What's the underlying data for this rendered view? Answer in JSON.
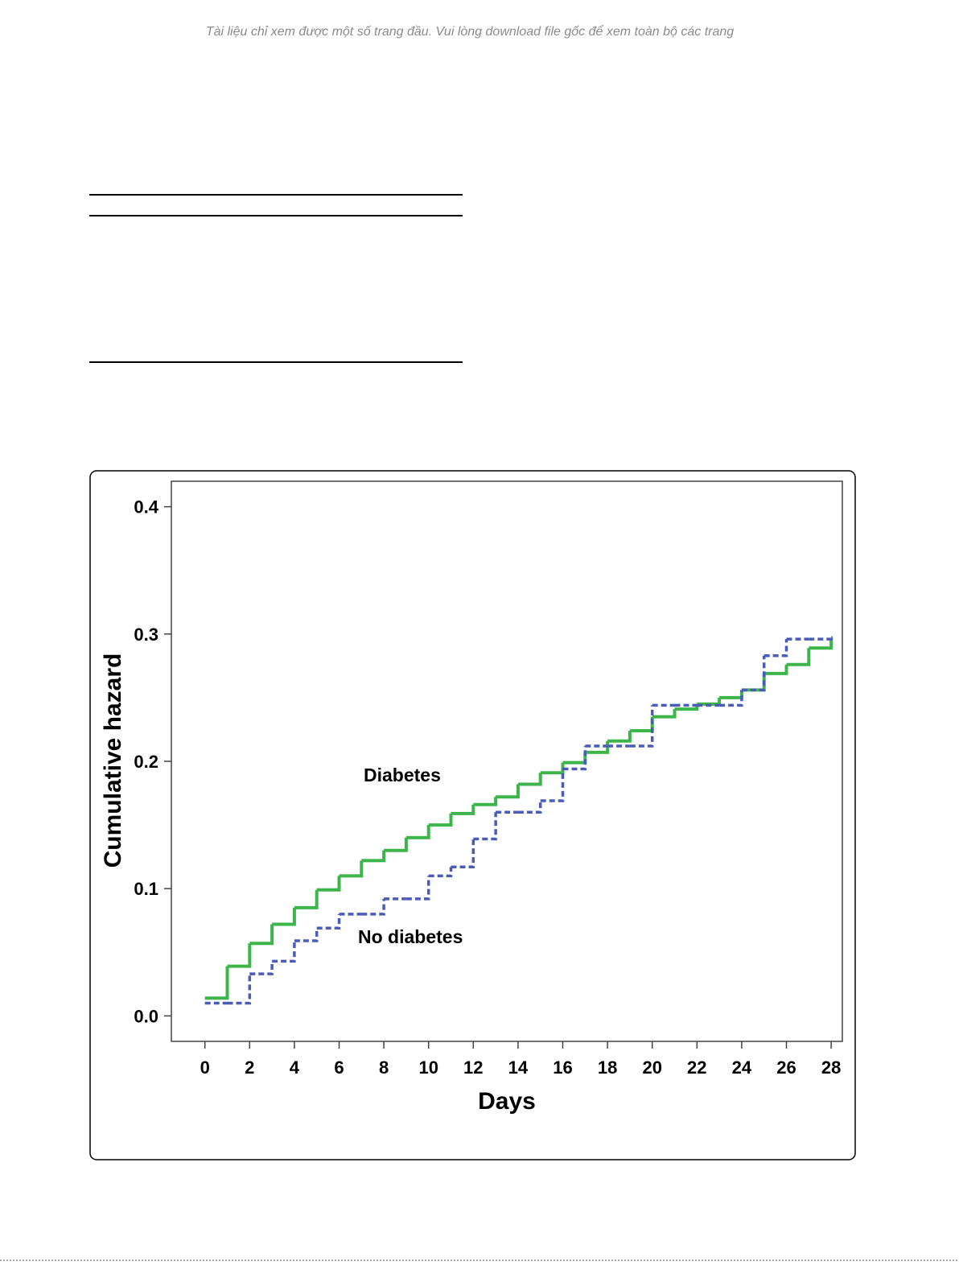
{
  "header": {
    "notice": "Tài liệu chỉ xem được một số trang đầu. Vui lòng download file gốc để xem toàn bộ các trang"
  },
  "chart_data": {
    "type": "step",
    "xlabel": "Days",
    "ylabel": "Cumulative hazard",
    "x": [
      0,
      1,
      2,
      3,
      4,
      5,
      6,
      7,
      8,
      9,
      10,
      11,
      12,
      13,
      14,
      15,
      16,
      17,
      18,
      19,
      20,
      21,
      22,
      23,
      24,
      25,
      26,
      27,
      28
    ],
    "series": [
      {
        "name": "Diabetes",
        "color": "#3db54a",
        "style": "solid",
        "values": [
          0.014,
          0.039,
          0.057,
          0.072,
          0.085,
          0.099,
          0.11,
          0.122,
          0.13,
          0.14,
          0.15,
          0.159,
          0.166,
          0.172,
          0.182,
          0.191,
          0.199,
          0.207,
          0.216,
          0.224,
          0.235,
          0.241,
          0.245,
          0.25,
          0.256,
          0.269,
          0.276,
          0.289,
          0.297
        ]
      },
      {
        "name": "No diabetes",
        "color": "#4a5cb8",
        "style": "dashed",
        "values": [
          0.01,
          0.01,
          0.033,
          0.043,
          0.059,
          0.069,
          0.08,
          0.08,
          0.092,
          0.092,
          0.11,
          0.117,
          0.139,
          0.16,
          0.16,
          0.169,
          0.194,
          0.212,
          0.212,
          0.212,
          0.244,
          0.244,
          0.244,
          0.244,
          0.256,
          0.283,
          0.296,
          0.296,
          0.296
        ]
      }
    ],
    "xlim": [
      -1.5,
      28.5
    ],
    "ylim": [
      -0.02,
      0.42
    ],
    "xticks": [
      0,
      2,
      4,
      6,
      8,
      10,
      12,
      14,
      16,
      18,
      20,
      22,
      24,
      26,
      28
    ],
    "yticks": [
      {
        "value": 0,
        "label": "0.0"
      },
      {
        "value": 0.1,
        "label": "0.1"
      },
      {
        "value": 0.2,
        "label": "0.2"
      },
      {
        "value": 0.3,
        "label": "0.3"
      },
      {
        "value": 0.4,
        "label": "0.4"
      }
    ]
  }
}
